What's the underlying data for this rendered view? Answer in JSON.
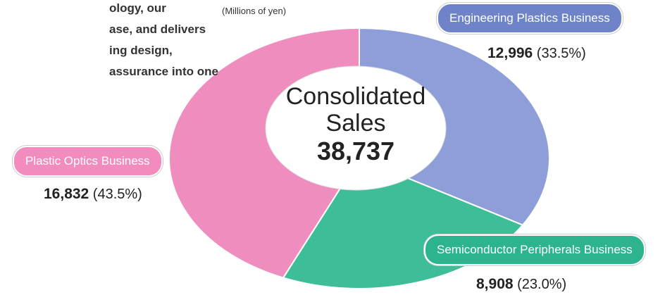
{
  "intro_lines": [
    "ology, our",
    "ase, and delivers",
    "ing design,",
    "assurance into one"
  ],
  "chart_data": {
    "type": "pie",
    "unit": "(Millions of yen)",
    "center_label": "Consolidated Sales",
    "total": 38737,
    "total_label": "38,737",
    "categories": [
      "Engineering Plastics Business",
      "Semiconductor Peripherals Business",
      "Plastic Optics Business"
    ],
    "values": [
      12996,
      8908,
      16832
    ],
    "value_labels": [
      "12,996",
      "8,908",
      "16,832"
    ],
    "shares": [
      33.5,
      23.0,
      43.5
    ],
    "share_labels": [
      "(33.5%)",
      "(23.0%)",
      "(43.5%)"
    ],
    "colors": [
      "#8d9ed8",
      "#3dbd98",
      "#f08dbf"
    ],
    "label_colors": [
      "#6f83c9",
      "#2db48e",
      "#f28cbf"
    ]
  }
}
